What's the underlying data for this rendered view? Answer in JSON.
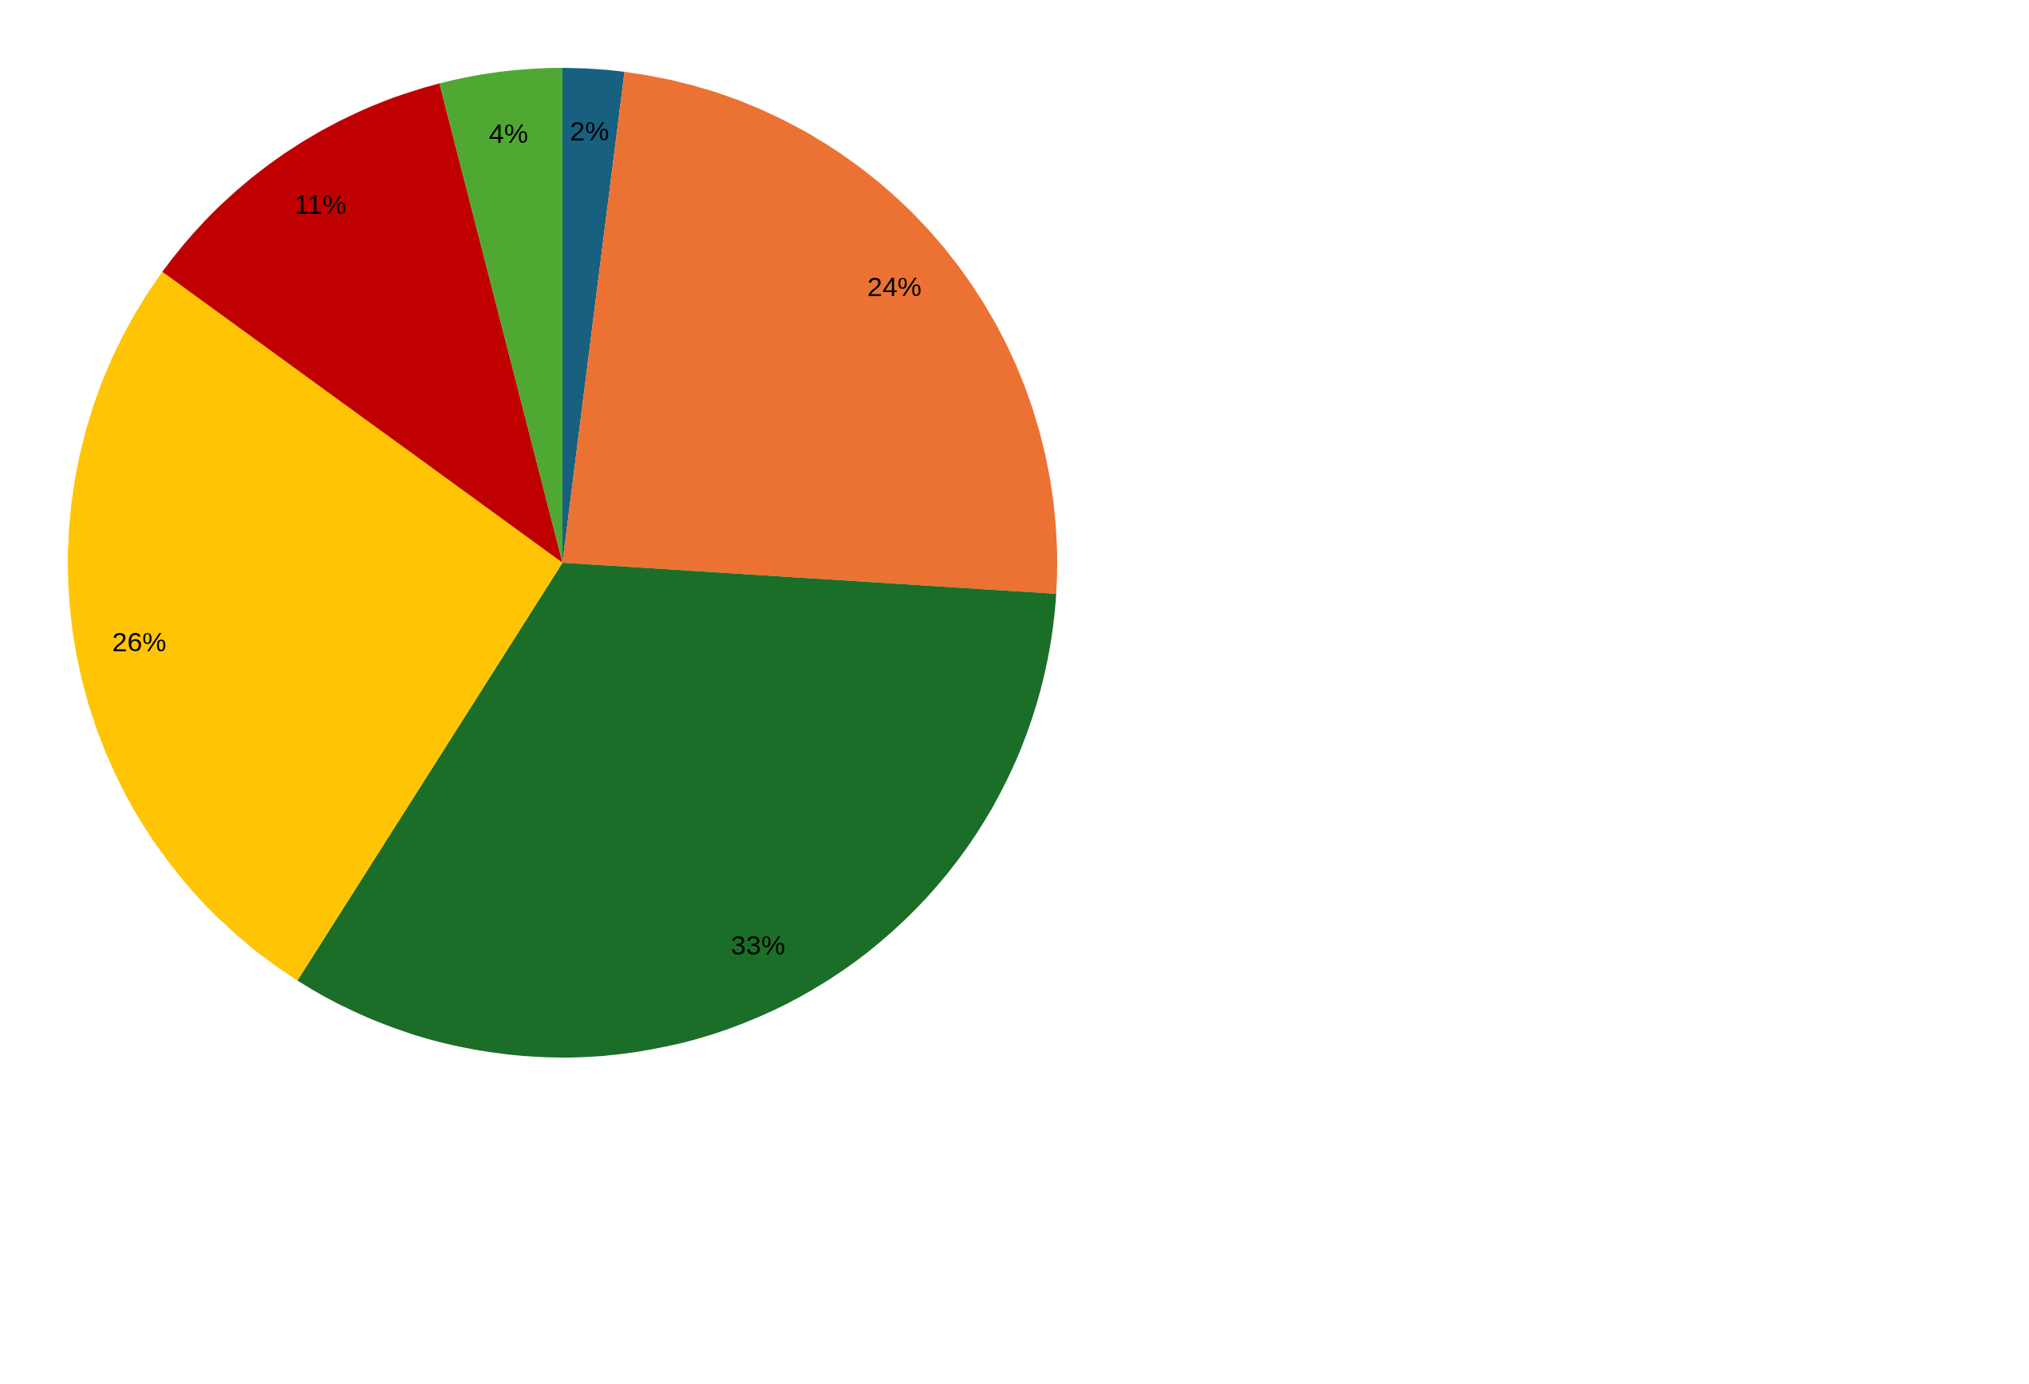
{
  "chart_data": {
    "type": "pie",
    "categories": [
      null,
      null,
      null,
      null,
      null,
      null
    ],
    "values": [
      2,
      24,
      33,
      26,
      11,
      4
    ],
    "colors": [
      "#17607f",
      "#eb7233",
      "#1b6e27",
      "#ffc505",
      "#c00000",
      "#4fa832"
    ],
    "value_labels": [
      "2%",
      "24%",
      "33%",
      "26%",
      "11%",
      "4%"
    ],
    "legend": false
  }
}
